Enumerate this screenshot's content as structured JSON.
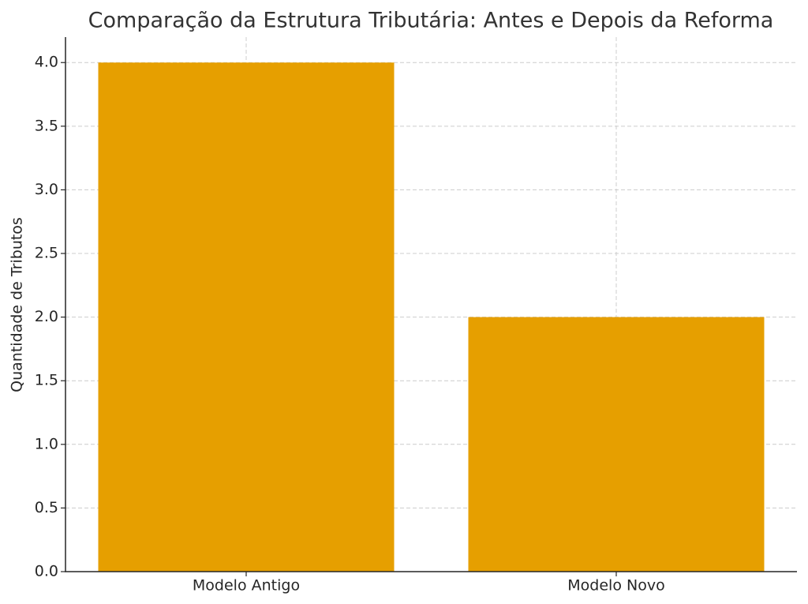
{
  "chart_data": {
    "type": "bar",
    "title": "Comparação da Estrutura Tributária: Antes e Depois da Reforma",
    "y_label": "Quantidade de Tributos",
    "categories": [
      "Modelo Antigo",
      "Modelo Novo"
    ],
    "values": [
      4,
      2
    ],
    "color": "#e69f00",
    "ylim": [
      0,
      4.2
    ],
    "yticks": [
      {
        "value": 0,
        "label": "0.0"
      },
      {
        "value": 0.5,
        "label": "0.5"
      },
      {
        "value": 1,
        "label": "1.0"
      },
      {
        "value": 1.5,
        "label": "1.5"
      },
      {
        "value": 2,
        "label": "2.0"
      },
      {
        "value": 2.5,
        "label": "2.5"
      },
      {
        "value": 3,
        "label": "3.0"
      },
      {
        "value": 3.5,
        "label": "3.5"
      },
      {
        "value": 4,
        "label": "4.0"
      }
    ],
    "grid": true
  }
}
